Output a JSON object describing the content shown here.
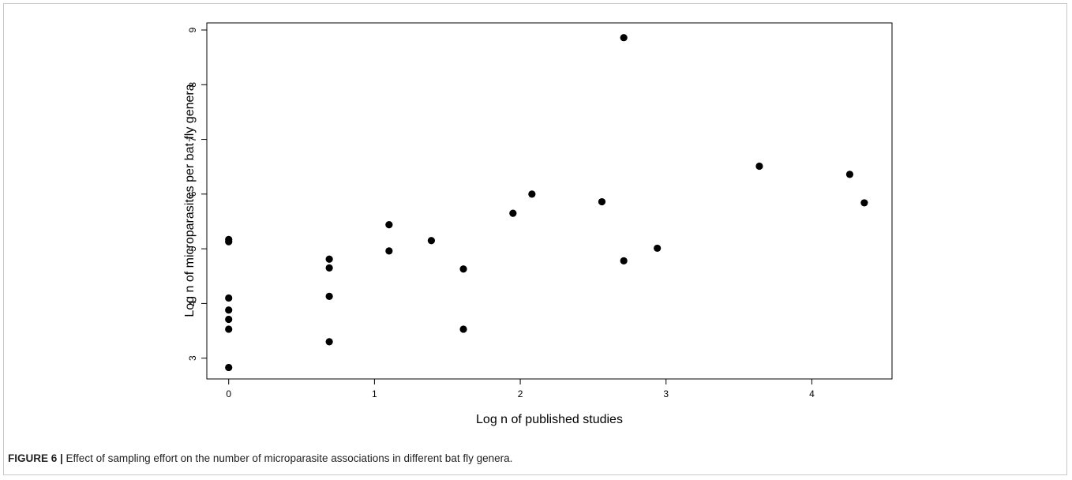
{
  "chart_data": {
    "type": "scatter",
    "xlabel": "Log n of published studies",
    "ylabel": "Log n of microparasites per bat fly genera",
    "xlim": [
      -0.15,
      4.55
    ],
    "ylim": [
      2.62,
      9.13
    ],
    "xticks": [
      0,
      1,
      2,
      3,
      4
    ],
    "yticks": [
      3,
      4,
      5,
      6,
      7,
      8,
      9
    ],
    "grid": false,
    "legend": "none",
    "marker_color": "#000000",
    "series": [
      {
        "points": [
          [
            0,
            5.17
          ],
          [
            0,
            5.13
          ],
          [
            0,
            4.1
          ],
          [
            0,
            3.88
          ],
          [
            0,
            3.71
          ],
          [
            0,
            3.53
          ],
          [
            0,
            2.83
          ],
          [
            0.69,
            4.81
          ],
          [
            0.69,
            4.65
          ],
          [
            0.69,
            4.13
          ],
          [
            0.69,
            3.3
          ],
          [
            1.1,
            5.44
          ],
          [
            1.1,
            4.96
          ],
          [
            1.39,
            5.15
          ],
          [
            1.61,
            4.63
          ],
          [
            1.61,
            3.53
          ],
          [
            1.95,
            5.65
          ],
          [
            2.08,
            6.0
          ],
          [
            2.56,
            5.86
          ],
          [
            2.71,
            8.86
          ],
          [
            2.71,
            4.78
          ],
          [
            2.94,
            5.01
          ],
          [
            3.64,
            6.51
          ],
          [
            4.26,
            6.36
          ],
          [
            4.36,
            5.84
          ]
        ]
      }
    ]
  },
  "caption": {
    "label": "FIGURE 6 |",
    "text": " Effect of sampling effort on the number of microparasite associations in different bat fly genera."
  }
}
